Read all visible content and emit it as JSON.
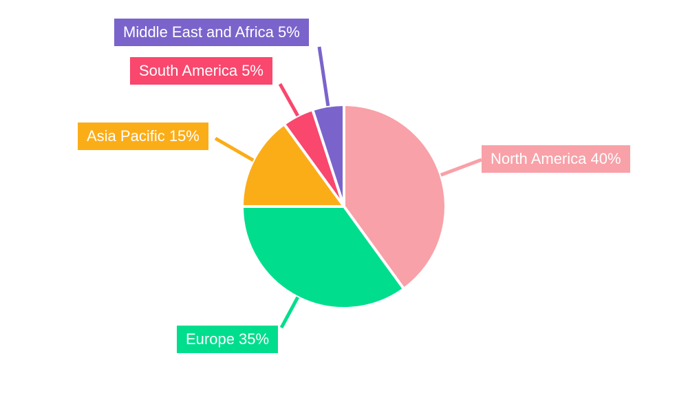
{
  "background_color": "#ffffff",
  "chart_data": {
    "type": "pie",
    "title": "",
    "categories": [
      "North America",
      "Europe",
      "Asia Pacific",
      "South America",
      "Middle East and Africa"
    ],
    "values": [
      40,
      35,
      15,
      5,
      5
    ],
    "unit": "%",
    "display_labels": [
      "North America 40%",
      "Europe 35%",
      "Asia Pacific 15%",
      "South America 5%",
      "Middle East and Africa 5%"
    ],
    "colors": [
      "#F8A1A8",
      "#00DE8D",
      "#FBAD18",
      "#F9476E",
      "#7A64CB"
    ],
    "label_text_color": "#ffffff",
    "slice_gap_color": "#ffffff",
    "start_angle_deg": 0,
    "direction": "clockwise",
    "legend_position": "outside-callouts-with-leader-lines"
  }
}
